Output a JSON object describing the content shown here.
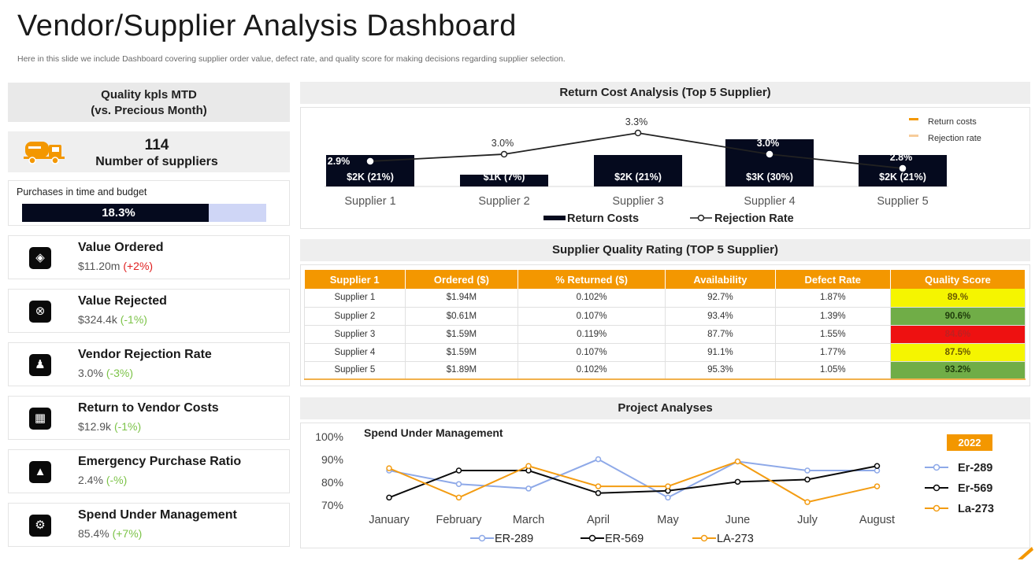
{
  "header": {
    "title": "Vendor/Supplier Analysis Dashboard",
    "subtitle": "Here in this slide we include Dashboard covering supplier order value, defect rate, and quality score for making decisions regarding supplier selection."
  },
  "left": {
    "kpi_header_line1": "Quality kpls MTD",
    "kpi_header_line2": "(vs. Precious Month)",
    "supplier_count": "114",
    "supplier_count_label": "Number of suppliers",
    "purchases_label": "Purchases  in time and budget",
    "purchases_value_text": "18.3%",
    "purchases_progress": 0.763,
    "kpis": [
      {
        "title": "Value Ordered",
        "value": "$11.20m",
        "change": "(+2%)",
        "trend": "neg",
        "icon": "money-hand-icon"
      },
      {
        "title": "Value Rejected",
        "value": "$324.4k",
        "change": "(-1%)",
        "trend": "pos",
        "icon": "reject-circle-icon"
      },
      {
        "title": "Vendor Rejection Rate",
        "value": "3.0%",
        "change": "(-3%)",
        "trend": "pos",
        "icon": "user-reject-icon"
      },
      {
        "title": "Return to Vendor Costs",
        "value": "$12.9k",
        "change": "(-1%)",
        "trend": "pos",
        "icon": "cost-grid-icon"
      },
      {
        "title": "Emergency Purchase Ratio",
        "value": "2.4%",
        "change": "(-%)",
        "trend": "pos",
        "icon": "alarm-icon"
      },
      {
        "title": "Spend Under Management",
        "value": "85.4%",
        "change": "(+7%)",
        "trend": "pos",
        "icon": "gear-money-icon"
      }
    ]
  },
  "return_cost": {
    "header": "Return Cost Analysis (Top 5 Supplier)"
  },
  "quality": {
    "header": "Supplier Quality Rating (TOP 5 Supplier)",
    "columns": [
      "Supplier 1",
      "Ordered ($)",
      "% Returned ($)",
      "Availability",
      "Defect Rate",
      "Quality Score"
    ],
    "rows": [
      {
        "cells": [
          "Supplier 1",
          "$1.94M",
          "0.102%",
          "92.7%",
          "1.87%",
          "89.%"
        ],
        "score_color": "#f5f500",
        "score_text_color": "#6b5a00"
      },
      {
        "cells": [
          "Supplier 2",
          "$0.61M",
          "0.107%",
          "93.4%",
          "1.39%",
          "90.6%"
        ],
        "score_color": "#70ad47",
        "score_text_color": "#1e3b0b"
      },
      {
        "cells": [
          "Supplier 3",
          "$1.59M",
          "0.119%",
          "87.7%",
          "1.55%",
          "84.6%"
        ],
        "score_color": "#ee1111",
        "score_text_color": "#c02020"
      },
      {
        "cells": [
          "Supplier 4",
          "$1.59M",
          "0.107%",
          "91.1%",
          "1.77%",
          "87.5%"
        ],
        "score_color": "#f5f500",
        "score_text_color": "#6b5a00"
      },
      {
        "cells": [
          "Supplier 5",
          "$1.89M",
          "0.102%",
          "95.3%",
          "1.05%",
          "93.2%"
        ],
        "score_color": "#70ad47",
        "score_text_color": "#1e3b0b"
      }
    ]
  },
  "project": {
    "header": "Project Analyses"
  },
  "colors": {
    "accent": "#f39700",
    "dark": "#050a1e",
    "blue_series": "#8ea9e8",
    "orange_series": "#f39c12"
  },
  "chart_data": [
    {
      "type": "bar",
      "categories": [
        "Supplier 1",
        "Supplier 2",
        "Supplier 3",
        "Supplier 4",
        "Supplier 5"
      ],
      "series": [
        {
          "name": "Return Costs",
          "values": [
            2,
            1,
            2,
            3,
            2
          ],
          "labels": [
            "$2K (21%)",
            "$1K (7%)",
            "$2K (21%)",
            "$3K (30%)",
            "$2K (21%)"
          ],
          "color": "#050a1e",
          "kind": "bar"
        },
        {
          "name": "Rejection Rate",
          "values": [
            2.9,
            3.0,
            3.3,
            3.0,
            2.8
          ],
          "labels": [
            "2.9%",
            "3.0%",
            "3.3%",
            "3.0%",
            "2.8%"
          ],
          "color": "#1a1a1a",
          "kind": "line"
        }
      ],
      "legend_top_right": [
        "Return costs",
        "Rejection rate"
      ],
      "legend_bottom": [
        "Return Costs",
        "Rejection Rate"
      ],
      "legend_placement": "top-right and bottom",
      "grid": false
    },
    {
      "type": "line",
      "title": "Spend Under Management",
      "categories": [
        "January",
        "February",
        "March",
        "April",
        "May",
        "June",
        "July",
        "August"
      ],
      "ylim": [
        70,
        100
      ],
      "yticks": [
        "100%",
        "90%",
        "80%",
        "70%"
      ],
      "series": [
        {
          "name": "Er-289",
          "bottom_name": "ER-289",
          "values": [
            85,
            79,
            77,
            90,
            73,
            89,
            85,
            85
          ],
          "color": "#8ea9e8"
        },
        {
          "name": "Er-569",
          "bottom_name": "ER-569",
          "values": [
            73,
            85,
            85,
            75,
            76,
            80,
            81,
            87
          ],
          "color": "#0a0a0a"
        },
        {
          "name": "La-273",
          "bottom_name": "LA-273",
          "values": [
            86,
            73,
            87,
            78,
            78,
            89,
            71,
            78
          ],
          "color": "#f39c12"
        }
      ],
      "legend_year": "2022",
      "legend_placement": "right and bottom",
      "grid": false
    }
  ]
}
